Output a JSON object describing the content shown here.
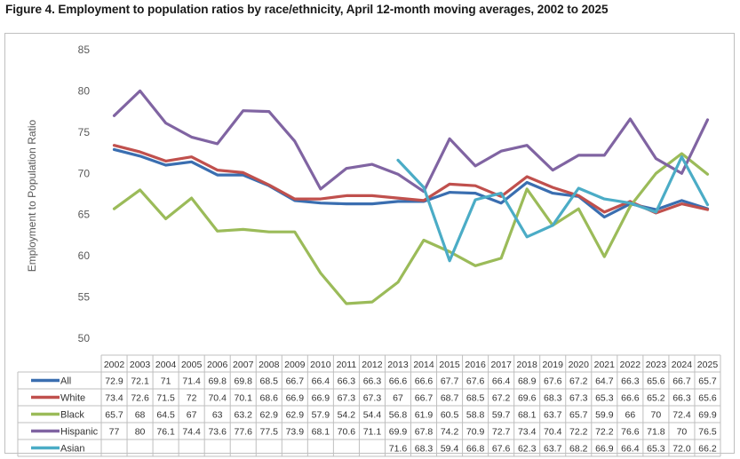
{
  "title": "Figure 4. Employment to population ratios by race/ethnicity, April 12-month moving averages, 2002 to 2025",
  "chart_data": {
    "type": "line",
    "title": "Figure 4. Employment to population ratios by race/ethnicity, April 12-month moving averages, 2002 to 2025",
    "xlabel": "",
    "ylabel": "Employment to Population Ratio",
    "ylim": [
      50,
      85
    ],
    "yticks": [
      50,
      55,
      60,
      65,
      70,
      75,
      80,
      85
    ],
    "grid": false,
    "legend": "data-table",
    "categories": [
      "2002",
      "2003",
      "2004",
      "2005",
      "2006",
      "2007",
      "2008",
      "2009",
      "2010",
      "2011",
      "2012",
      "2013",
      "2014",
      "2015",
      "2016",
      "2017",
      "2018",
      "2019",
      "2020",
      "2021",
      "2022",
      "2023",
      "2024",
      "2025"
    ],
    "series": [
      {
        "name": "All",
        "color": "#3a6eb0",
        "values": [
          72.9,
          72.1,
          71,
          71.4,
          69.8,
          69.8,
          68.5,
          66.7,
          66.4,
          66.3,
          66.3,
          66.6,
          66.6,
          67.7,
          67.6,
          66.4,
          68.9,
          67.6,
          67.2,
          64.7,
          66.3,
          65.6,
          66.7,
          65.7
        ],
        "labels": [
          "72.9",
          "72.1",
          "71",
          "71.4",
          "69.8",
          "69.8",
          "68.5",
          "66.7",
          "66.4",
          "66.3",
          "66.3",
          "66.6",
          "66.6",
          "67.7",
          "67.6",
          "66.4",
          "68.9",
          "67.6",
          "67.2",
          "64.7",
          "66.3",
          "65.6",
          "66.7",
          "65.7"
        ]
      },
      {
        "name": "White",
        "color": "#c0504d",
        "values": [
          73.4,
          72.6,
          71.5,
          72,
          70.4,
          70.1,
          68.6,
          66.9,
          66.9,
          67.3,
          67.3,
          67,
          66.7,
          68.7,
          68.5,
          67.2,
          69.6,
          68.3,
          67.3,
          65.3,
          66.6,
          65.2,
          66.3,
          65.6
        ],
        "labels": [
          "73.4",
          "72.6",
          "71.5",
          "72",
          "70.4",
          "70.1",
          "68.6",
          "66.9",
          "66.9",
          "67.3",
          "67.3",
          "67",
          "66.7",
          "68.7",
          "68.5",
          "67.2",
          "69.6",
          "68.3",
          "67.3",
          "65.3",
          "66.6",
          "65.2",
          "66.3",
          "65.6"
        ]
      },
      {
        "name": "Black",
        "color": "#9bbb59",
        "values": [
          65.7,
          68,
          64.5,
          67,
          63,
          63.2,
          62.9,
          62.9,
          57.9,
          54.2,
          54.4,
          56.8,
          61.9,
          60.5,
          58.8,
          59.7,
          68.1,
          63.7,
          65.7,
          59.9,
          66,
          70,
          72.4,
          69.9
        ],
        "labels": [
          "65.7",
          "68",
          "64.5",
          "67",
          "63",
          "63.2",
          "62.9",
          "62.9",
          "57.9",
          "54.2",
          "54.4",
          "56.8",
          "61.9",
          "60.5",
          "58.8",
          "59.7",
          "68.1",
          "63.7",
          "65.7",
          "59.9",
          "66",
          "70",
          "72.4",
          "69.9"
        ]
      },
      {
        "name": "Hispanic",
        "color": "#8064a2",
        "values": [
          77,
          80,
          76.1,
          74.4,
          73.6,
          77.6,
          77.5,
          73.9,
          68.1,
          70.6,
          71.1,
          69.9,
          67.8,
          74.2,
          70.9,
          72.7,
          73.4,
          70.4,
          72.2,
          72.2,
          76.6,
          71.8,
          70,
          76.5
        ],
        "labels": [
          "77",
          "80",
          "76.1",
          "74.4",
          "73.6",
          "77.6",
          "77.5",
          "73.9",
          "68.1",
          "70.6",
          "71.1",
          "69.9",
          "67.8",
          "74.2",
          "70.9",
          "72.7",
          "73.4",
          "70.4",
          "72.2",
          "72.2",
          "76.6",
          "71.8",
          "70",
          "76.5"
        ]
      },
      {
        "name": "Asian",
        "color": "#4bacc6",
        "values": [
          null,
          null,
          null,
          null,
          null,
          null,
          null,
          null,
          null,
          null,
          null,
          71.6,
          68.3,
          59.4,
          66.8,
          67.6,
          62.3,
          63.7,
          68.2,
          66.9,
          66.4,
          65.3,
          72.0,
          66.2
        ],
        "labels": [
          "",
          "",
          "",
          "",
          "",
          "",
          "",
          "",
          "",
          "",
          "",
          "71.6",
          "68.3",
          "59.4",
          "66.8",
          "67.6",
          "62.3",
          "63.7",
          "68.2",
          "66.9",
          "66.4",
          "65.3",
          "72.0",
          "66.2"
        ]
      }
    ]
  }
}
